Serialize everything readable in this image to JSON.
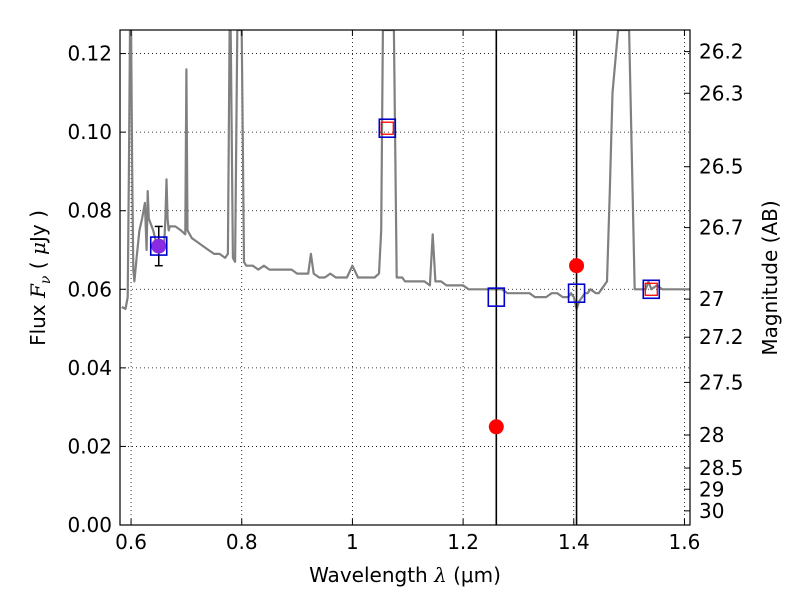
{
  "chart_data": {
    "type": "line",
    "xlabel": "Wavelength  λ (μm)",
    "ylabel": "Flux  F_ν  ( μJy )",
    "ylabel_parts": {
      "prefix": "Flux  ",
      "f": "F",
      "nu": "ν",
      "paren_open": "  (  ",
      "mu": "μ",
      "jy": "Jy )"
    },
    "xlabel_parts": {
      "text": "Wavelength  ",
      "lambda": "λ",
      "rest": " (μm)"
    },
    "y2label": "Magnitude (AB)",
    "xlim": [
      0.58,
      1.61
    ],
    "ylim": [
      0.0,
      0.126
    ],
    "grid": true,
    "x_ticks": [
      0.6,
      0.8,
      1.0,
      1.2,
      1.4,
      1.6
    ],
    "x_tick_labels": [
      "0.6",
      "0.8",
      "1",
      "1.2",
      "1.4",
      "1.6"
    ],
    "y_ticks": [
      0.0,
      0.02,
      0.04,
      0.06,
      0.08,
      0.1,
      0.12
    ],
    "y_tick_labels": [
      "0.00",
      "0.02",
      "0.04",
      "0.06",
      "0.08",
      "0.10",
      "0.12"
    ],
    "mag_ticks": [
      {
        "y": 0.1205,
        "label": "26.2"
      },
      {
        "y": 0.1099,
        "label": "26.3"
      },
      {
        "y": 0.0912,
        "label": "26.5"
      },
      {
        "y": 0.0757,
        "label": "26.7"
      },
      {
        "y": 0.0575,
        "label": "27"
      },
      {
        "y": 0.0478,
        "label": "27.2"
      },
      {
        "y": 0.0363,
        "label": "27.5"
      },
      {
        "y": 0.0229,
        "label": "28"
      },
      {
        "y": 0.0145,
        "label": "28.5"
      },
      {
        "y": 0.0091,
        "label": "29"
      },
      {
        "y": 0.0036,
        "label": "30"
      }
    ],
    "vertical_lines": [
      1.26,
      1.405
    ],
    "model_spectrum": {
      "color": "#808080",
      "x": [
        0.583,
        0.59,
        0.594,
        0.596,
        0.598,
        0.6,
        0.602,
        0.604,
        0.606,
        0.61,
        0.615,
        0.62,
        0.625,
        0.628,
        0.63,
        0.632,
        0.64,
        0.645,
        0.65,
        0.655,
        0.66,
        0.662,
        0.664,
        0.666,
        0.668,
        0.67,
        0.68,
        0.69,
        0.698,
        0.7,
        0.702,
        0.71,
        0.72,
        0.73,
        0.74,
        0.75,
        0.76,
        0.77,
        0.775,
        0.778,
        0.78,
        0.784,
        0.788,
        0.792,
        0.795,
        0.798,
        0.8,
        0.804,
        0.808,
        0.82,
        0.83,
        0.84,
        0.85,
        0.86,
        0.87,
        0.88,
        0.89,
        0.9,
        0.91,
        0.92,
        0.925,
        0.93,
        0.94,
        0.95,
        0.96,
        0.97,
        0.98,
        0.99,
        1.0,
        1.01,
        1.02,
        1.03,
        1.04,
        1.048,
        1.052,
        1.055,
        1.058,
        1.06,
        1.062,
        1.068,
        1.075,
        1.08,
        1.085,
        1.09,
        1.095,
        1.1,
        1.11,
        1.12,
        1.13,
        1.14,
        1.145,
        1.15,
        1.16,
        1.17,
        1.18,
        1.19,
        1.2,
        1.21,
        1.22,
        1.23,
        1.24,
        1.25,
        1.26,
        1.27,
        1.28,
        1.29,
        1.3,
        1.31,
        1.32,
        1.33,
        1.34,
        1.35,
        1.36,
        1.37,
        1.38,
        1.39,
        1.395,
        1.4,
        1.405,
        1.41,
        1.42,
        1.425,
        1.43,
        1.44,
        1.445,
        1.45,
        1.455,
        1.46,
        1.465,
        1.47,
        1.48,
        1.49,
        1.5,
        1.51,
        1.52,
        1.525,
        1.53,
        1.535,
        1.54,
        1.55,
        1.56,
        1.57,
        1.58,
        1.59,
        1.6,
        1.61
      ],
      "y": [
        0.0555,
        0.055,
        0.058,
        0.09,
        0.126,
        0.126,
        0.09,
        0.065,
        0.062,
        0.068,
        0.075,
        0.078,
        0.082,
        0.07,
        0.085,
        0.078,
        0.075,
        0.072,
        0.07,
        0.071,
        0.072,
        0.078,
        0.088,
        0.078,
        0.075,
        0.076,
        0.076,
        0.075,
        0.074,
        0.116,
        0.075,
        0.073,
        0.072,
        0.071,
        0.07,
        0.069,
        0.069,
        0.068,
        0.069,
        0.126,
        0.126,
        0.068,
        0.067,
        0.126,
        0.126,
        0.126,
        0.126,
        0.067,
        0.066,
        0.066,
        0.065,
        0.066,
        0.065,
        0.065,
        0.065,
        0.065,
        0.065,
        0.064,
        0.064,
        0.064,
        0.069,
        0.064,
        0.063,
        0.063,
        0.064,
        0.063,
        0.063,
        0.063,
        0.066,
        0.063,
        0.063,
        0.063,
        0.063,
        0.064,
        0.075,
        0.126,
        0.126,
        0.126,
        0.126,
        0.126,
        0.126,
        0.063,
        0.063,
        0.063,
        0.062,
        0.062,
        0.062,
        0.062,
        0.062,
        0.061,
        0.074,
        0.062,
        0.062,
        0.061,
        0.061,
        0.061,
        0.061,
        0.06,
        0.06,
        0.06,
        0.06,
        0.06,
        0.06,
        0.06,
        0.059,
        0.059,
        0.059,
        0.059,
        0.059,
        0.058,
        0.058,
        0.058,
        0.059,
        0.059,
        0.058,
        0.058,
        0.059,
        0.058,
        0.055,
        0.057,
        0.059,
        0.059,
        0.06,
        0.059,
        0.059,
        0.06,
        0.061,
        0.062,
        0.085,
        0.11,
        0.126,
        0.126,
        0.126,
        0.06,
        0.06,
        0.06,
        0.06,
        0.062,
        0.06,
        0.061,
        0.06,
        0.06,
        0.06,
        0.06,
        0.06,
        0.06
      ],
      "segments_note": ""
    },
    "observed_points": {
      "color": "#ff0000",
      "x": [
        0.65,
        1.26,
        1.405
      ],
      "y": [
        0.071,
        0.025,
        0.066
      ]
    },
    "observed_errorbar": {
      "x": 0.65,
      "y": 0.071,
      "low": 0.066,
      "high": 0.076
    },
    "model_band_squares": {
      "color": "#0000cc",
      "x": [
        0.65,
        1.063,
        1.26,
        1.405,
        1.54
      ],
      "y": [
        0.071,
        0.101,
        0.058,
        0.059,
        0.06
      ]
    },
    "model_red_squares": {
      "color": "#ff0000",
      "x": [
        1.063,
        1.54
      ],
      "y": [
        0.101,
        0.06
      ]
    },
    "point_overlay_color": "#8a2be2",
    "colors": {
      "axis": "#000000",
      "grid": "#000000",
      "spectrum": "#808080",
      "vline": "#000000"
    }
  }
}
